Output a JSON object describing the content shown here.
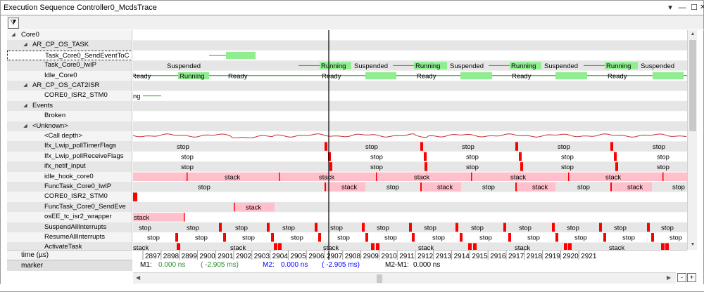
{
  "window": {
    "title": "Execution Sequence Controller0_McdsTrace",
    "btn_menu": "▾",
    "btn_min": "—",
    "btn_max": "☐",
    "btn_close": "✕"
  },
  "toolbar": {
    "filter_icon": "filter-icon",
    "filter_glyph": "⧩"
  },
  "tree": {
    "rows": [
      {
        "label": "Core0",
        "indent": 0,
        "arrow": "◢",
        "alt": false
      },
      {
        "label": "AR_CP_OS_TASK",
        "indent": 1,
        "arrow": "◢",
        "alt": true
      },
      {
        "label": "Task_Core0_SendEventToC",
        "indent": 2,
        "arrow": "",
        "alt": false,
        "selected": true
      },
      {
        "label": "Task_Core0_lwIP",
        "indent": 2,
        "arrow": "",
        "alt": true
      },
      {
        "label": "Idle_Core0",
        "indent": 2,
        "arrow": "",
        "alt": false
      },
      {
        "label": "AR_CP_OS_CAT2ISR",
        "indent": 1,
        "arrow": "◢",
        "alt": true
      },
      {
        "label": "CORE0_ISR2_STM0",
        "indent": 2,
        "arrow": "",
        "alt": false
      },
      {
        "label": "Events",
        "indent": 1,
        "arrow": "◢",
        "alt": true
      },
      {
        "label": "Broken",
        "indent": 2,
        "arrow": "",
        "alt": false
      },
      {
        "label": "<Unknown>",
        "indent": 1,
        "arrow": "◢",
        "alt": true
      },
      {
        "label": "<Call depth>",
        "indent": 2,
        "arrow": "",
        "alt": false
      },
      {
        "label": "Ifx_Lwip_pollTimerFlags",
        "indent": 2,
        "arrow": "",
        "alt": true
      },
      {
        "label": "Ifx_Lwip_pollReceiveFlags",
        "indent": 2,
        "arrow": "",
        "alt": false
      },
      {
        "label": "ifx_netif_input",
        "indent": 2,
        "arrow": "",
        "alt": true
      },
      {
        "label": "idle_hook_core0",
        "indent": 2,
        "arrow": "",
        "alt": false
      },
      {
        "label": "FuncTask_Core0_lwIP",
        "indent": 2,
        "arrow": "",
        "alt": true
      },
      {
        "label": "CORE0_ISR2_STM0",
        "indent": 2,
        "arrow": "",
        "alt": false
      },
      {
        "label": "FuncTask_Core0_SendEve",
        "indent": 2,
        "arrow": "",
        "alt": true
      },
      {
        "label": "osEE_tc_isr2_wrapper",
        "indent": 2,
        "arrow": "",
        "alt": false
      },
      {
        "label": "SuspendAllInterrupts",
        "indent": 2,
        "arrow": "",
        "alt": true
      },
      {
        "label": "ResumeAllInterrupts",
        "indent": 2,
        "arrow": "",
        "alt": false
      },
      {
        "label": "ActivateTask",
        "indent": 2,
        "arrow": "",
        "alt": true
      }
    ]
  },
  "states": {
    "ready": "Ready",
    "running": "Running",
    "suspended": "Suspended",
    "stop": "stop",
    "stack": "stack",
    "ng": "ng"
  },
  "axis": {
    "label": "time (µs)",
    "ticks": [
      "2897",
      "2898",
      "2899",
      "2900",
      "2901",
      "2902",
      "2903",
      "2904",
      "2905",
      "2906",
      "2907",
      "2908",
      "2909",
      "2910",
      "2911",
      "2912",
      "2913",
      "2914",
      "2915",
      "2916",
      "2917",
      "2918",
      "2919",
      "2920",
      "2921"
    ]
  },
  "marker": {
    "label": "marker",
    "m1_label": "M1:",
    "m1_value": "0.000 ns",
    "m1_delta": "( -2.905 ms)",
    "m2_label": "M2:",
    "m2_value": "0.000 ns",
    "m2_delta": "( -2.905 ms)",
    "m2m1_label": "M2-M1:",
    "m2m1_value": "0.000 ns"
  },
  "colors": {
    "running": "#90ee90",
    "line_green": "#2e9a2e",
    "stack": "#ffc0cb",
    "stop_mark": "#ff0000",
    "cursor": "#000000",
    "m1": "#2e8b2e",
    "m2": "#0000ff",
    "row_alt": "#e6e6e6"
  },
  "scroll": {
    "left_arrow": "◀",
    "right_arrow": "▶",
    "up_arrow": "▲",
    "down_arrow": "▼",
    "zoom_out": "-",
    "zoom_in": "+"
  }
}
